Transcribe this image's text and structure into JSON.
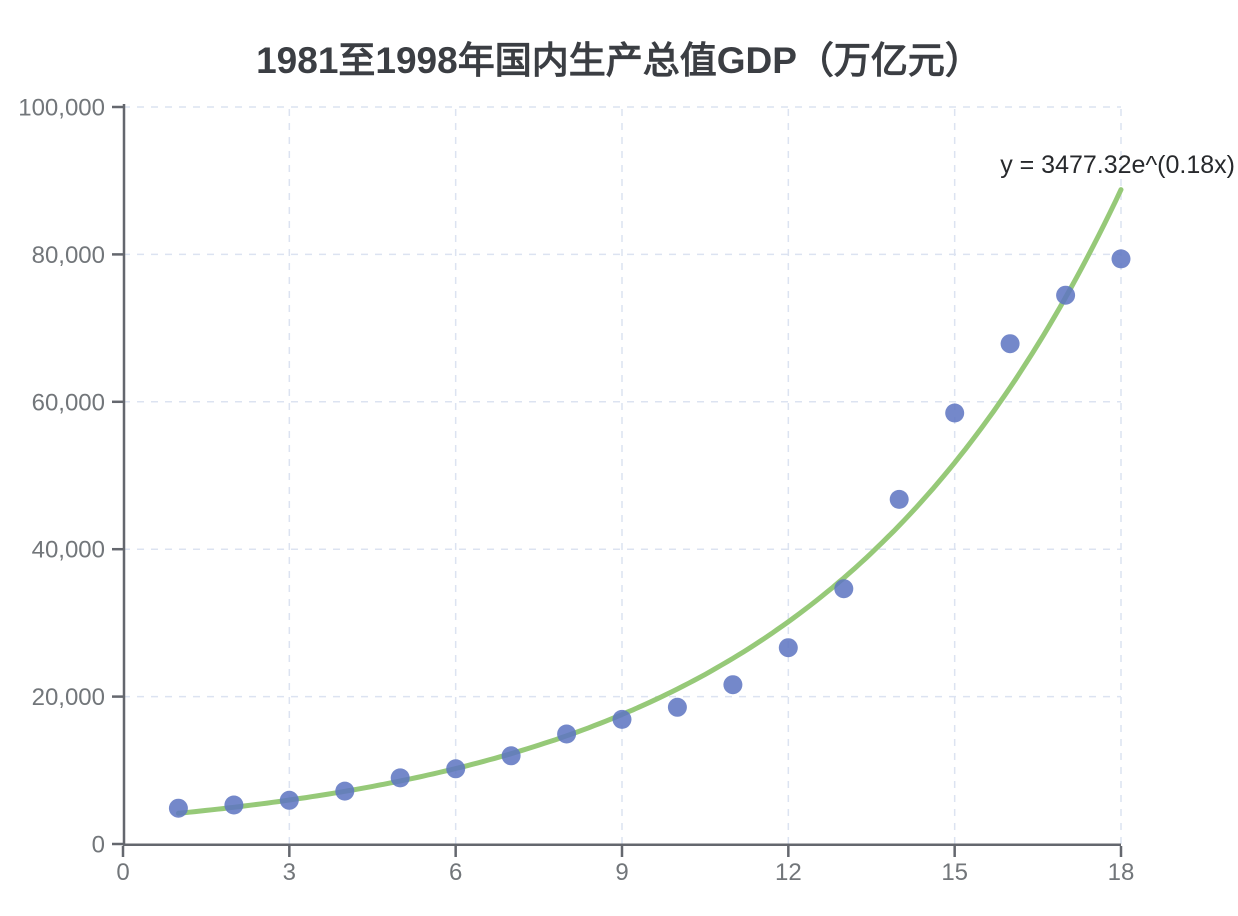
{
  "page": {
    "background": "#ffffff"
  },
  "chart_data": {
    "type": "scatter",
    "title": "1981至1998年国内生产总值GDP（万亿元）",
    "x": [
      1,
      2,
      3,
      4,
      5,
      6,
      7,
      8,
      9,
      10,
      11,
      12,
      13,
      14,
      15,
      16,
      17,
      18
    ],
    "y": [
      4862.4,
      5294.7,
      5934.5,
      7171.0,
      8964.4,
      10202.2,
      11962.5,
      14928.3,
      16909.2,
      18547.9,
      21617.8,
      26638.1,
      34634.4,
      46759.4,
      58478.1,
      67884.6,
      74462.6,
      79395.7
    ],
    "fit": {
      "label": "y = 3477.32e^(0.18x)",
      "a": 3477.32,
      "b": 0.18,
      "x_start": 1,
      "x_end": 18
    },
    "xlim": [
      0,
      18
    ],
    "ylim": [
      0,
      100000
    ],
    "x_ticks": [
      0,
      3,
      6,
      9,
      12,
      15,
      18
    ],
    "x_tick_labels": [
      "0",
      "3",
      "6",
      "9",
      "12",
      "15",
      "18"
    ],
    "y_ticks": [
      0,
      20000,
      40000,
      60000,
      80000,
      100000
    ],
    "y_tick_labels": [
      "0",
      "20,000",
      "40,000",
      "60,000",
      "80,000",
      "100,000"
    ],
    "grid": true,
    "legend": "none",
    "colors": {
      "point": "#5f76c2",
      "point_opacity": 0.87,
      "curve": "#96c978",
      "grid": "#dce3f1",
      "axis": "#64676e",
      "tick_label": "#72767a",
      "title": "#3b3e43",
      "equation": "#27292c"
    }
  }
}
